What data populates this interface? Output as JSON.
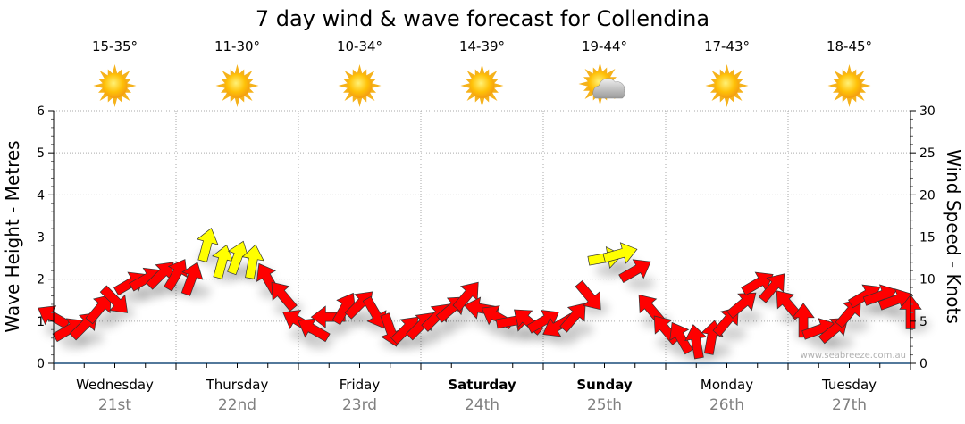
{
  "chart_data": {
    "type": "scatter",
    "title": "7 day wind & wave forecast for Collendina",
    "ylabel_left": "Wave Height - Metres",
    "ylabel_right": "Wind Speed - Knots",
    "ylim_left": [
      0,
      6
    ],
    "ylim_right": [
      0,
      30
    ],
    "left_ticks": [
      "0",
      "1",
      "2",
      "3",
      "4",
      "5",
      "6"
    ],
    "right_ticks": [
      "0",
      "5",
      "10",
      "15",
      "20",
      "25",
      "30"
    ],
    "grid": true,
    "watermark": "www.seabreeze.com.au",
    "strong_wind_threshold_knots": 12,
    "colors": {
      "normal": "#ff0000",
      "strong": "#ffff00",
      "axis": "#1a4d7a",
      "date": "#808080"
    },
    "days": [
      {
        "name": "Wednesday",
        "date": "21st",
        "temp": "15-35°",
        "icon": "sun-icon",
        "bold": false
      },
      {
        "name": "Thursday",
        "date": "22nd",
        "temp": "11-30°",
        "icon": "sun-icon",
        "bold": false
      },
      {
        "name": "Friday",
        "date": "23rd",
        "temp": "10-34°",
        "icon": "sun-icon",
        "bold": false
      },
      {
        "name": "Saturday",
        "date": "24th",
        "temp": "14-39°",
        "icon": "sun-icon",
        "bold": true
      },
      {
        "name": "Sunday",
        "date": "25th",
        "temp": "19-44°",
        "icon": "partly-cloudy-icon",
        "bold": true
      },
      {
        "name": "Monday",
        "date": "26th",
        "temp": "17-43°",
        "icon": "sun-icon",
        "bold": false
      },
      {
        "name": "Tuesday",
        "date": "27th",
        "temp": "18-45°",
        "icon": "sun-icon",
        "bold": false
      }
    ],
    "wind_series": {
      "name": "Wind speed (knots) with direction (degrees the arrow points, 0 = up)",
      "interval_hours": 3,
      "knots": [
        5.5,
        4,
        4.5,
        6.5,
        7.5,
        9.5,
        10,
        10.5,
        10.5,
        10,
        14,
        12,
        12.5,
        12,
        10,
        8,
        5,
        4,
        5.5,
        6.5,
        7,
        6,
        4,
        4,
        4.5,
        5.5,
        6.5,
        8,
        6.5,
        5.5,
        5,
        5,
        5,
        4.5,
        5.5,
        8,
        12.5,
        13,
        11,
        6.5,
        4,
        3,
        2.5,
        3,
        5,
        7,
        9.5,
        9,
        7,
        5,
        4,
        4,
        6,
        8,
        8,
        7.5,
        6
      ],
      "direction": [
        300,
        60,
        45,
        40,
        135,
        60,
        60,
        45,
        30,
        20,
        15,
        15,
        20,
        10,
        330,
        320,
        300,
        300,
        270,
        30,
        45,
        150,
        160,
        45,
        45,
        45,
        50,
        40,
        280,
        300,
        80,
        310,
        60,
        240,
        40,
        140,
        80,
        75,
        60,
        320,
        320,
        330,
        350,
        10,
        40,
        50,
        60,
        40,
        320,
        0,
        70,
        50,
        40,
        60,
        70,
        70,
        0
      ]
    }
  }
}
